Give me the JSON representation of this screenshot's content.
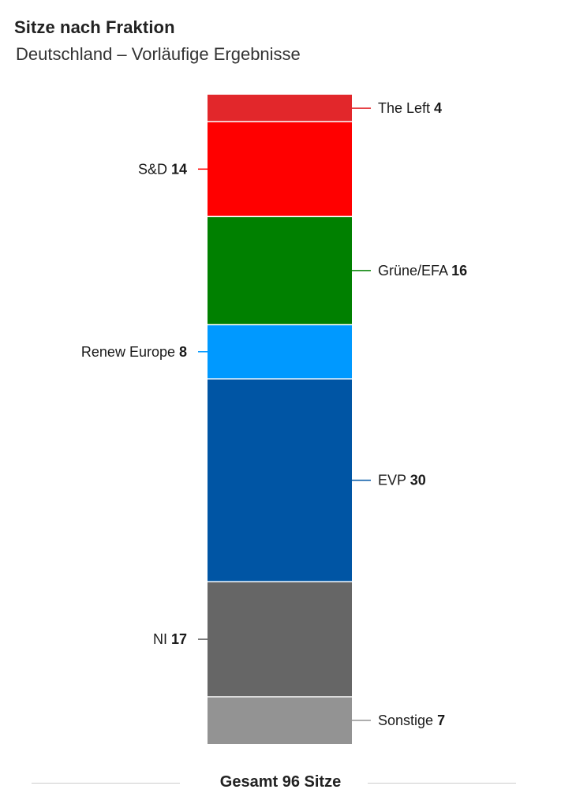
{
  "header": {
    "title": "Sitze nach Fraktion",
    "subtitle": "Deutschland – Vorläufige Ergebnisse"
  },
  "chart_data": {
    "type": "bar",
    "stacked": true,
    "orientation": "vertical",
    "unit": "Sitze",
    "total": 96,
    "segments": [
      {
        "name": "The Left",
        "value": 4,
        "color": "#e2272b",
        "label_side": "right"
      },
      {
        "name": "S&D",
        "value": 14,
        "color": "#ff0000",
        "label_side": "left"
      },
      {
        "name": "Grüne/EFA",
        "value": 16,
        "color": "#008000",
        "label_side": "right"
      },
      {
        "name": "Renew Europe",
        "value": 8,
        "color": "#0099ff",
        "label_side": "left"
      },
      {
        "name": "EVP",
        "value": 30,
        "color": "#0055a4",
        "label_side": "right"
      },
      {
        "name": "NI",
        "value": 17,
        "color": "#666666",
        "label_side": "left"
      },
      {
        "name": "Sonstige",
        "value": 7,
        "color": "#939393",
        "label_side": "right"
      }
    ]
  },
  "footer": {
    "total_label": "Gesamt 96 Sitze"
  }
}
